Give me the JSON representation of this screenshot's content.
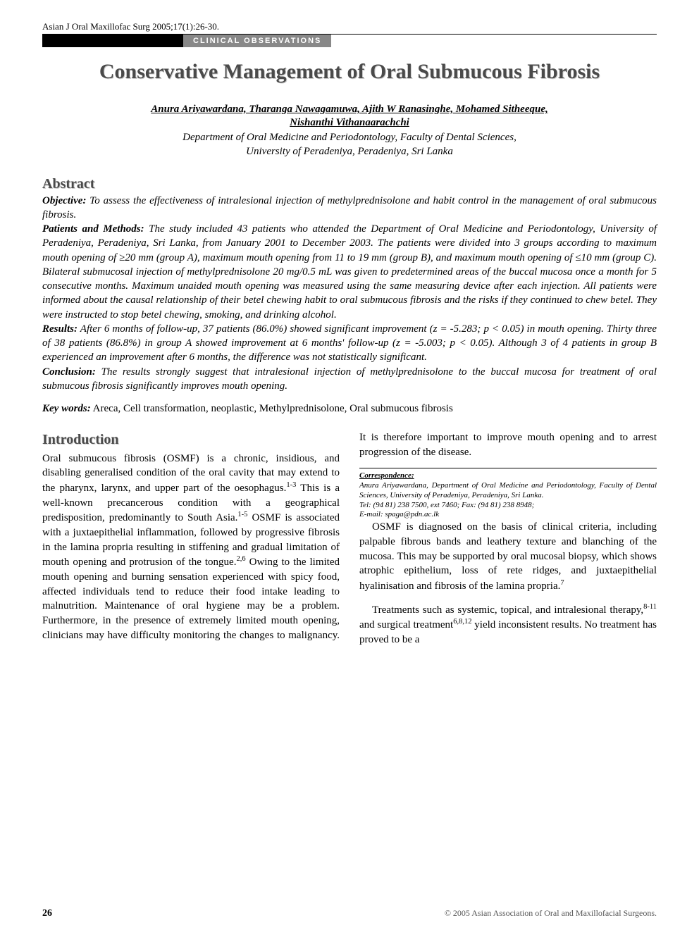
{
  "header": {
    "citation": "Asian J Oral Maxillofac Surg 2005;17(1):26-30.",
    "banner": "CLINICAL OBSERVATIONS"
  },
  "title": "Conservative Management of Oral Submucous Fibrosis",
  "authors_line1": "Anura Ariyawardana, Tharanga Nawagamuwa, Ajith W Ranasinghe, Mohamed Sitheeque,",
  "authors_line2": "Nishanthi Vithanaarachchi",
  "affiliation_line1": "Department of Oral Medicine and Periodontology, Faculty of Dental Sciences,",
  "affiliation_line2": "University of Peradeniya, Peradeniya, Sri Lanka",
  "abstract": {
    "heading": "Abstract",
    "objective_label": "Objective:",
    "objective_text": " To assess the effectiveness of intralesional injection of methylprednisolone and habit control in the management of oral submucous fibrosis.",
    "methods_label": "Patients and Methods:",
    "methods_text": " The study included 43 patients who attended the Department of Oral Medicine and Periodontology, University of Peradeniya, Peradeniya, Sri Lanka, from January 2001 to December 2003. The patients were divided into 3 groups according to maximum mouth opening of ≥20 mm (group A), maximum mouth opening from 11 to 19 mm (group B), and maximum mouth opening of ≤10 mm (group C). Bilateral submucosal injection of methylprednisolone 20 mg/0.5 mL was given to predetermined areas of the buccal mucosa once a month for 5 consecutive months. Maximum unaided mouth opening was measured using the same measuring device after each injection. All patients were informed about the causal relationship of their betel chewing habit to oral submucous fibrosis and the risks if they continued to chew betel. They were instructed to stop betel chewing, smoking, and drinking alcohol.",
    "results_label": "Results:",
    "results_text": " After 6 months of follow-up, 37 patients (86.0%) showed significant improvement (z = -5.283; p < 0.05) in mouth opening. Thirty three of 38 patients (86.8%) in group A showed improvement at 6 months' follow-up (z = -5.003; p < 0.05). Although 3 of 4 patients in group B experienced an improvement after 6 months, the difference was not statistically significant.",
    "conclusion_label": "Conclusion:",
    "conclusion_text": " The results strongly suggest that intralesional injection of methylprednisolone to the buccal mucosa for treatment of oral submucous fibrosis significantly improves mouth opening."
  },
  "keywords": {
    "label": "Key words:",
    "text": " Areca, Cell transformation, neoplastic, Methylprednisolone, Oral submucous fibrosis"
  },
  "intro": {
    "heading": "Introduction",
    "p1_a": "Oral submucous fibrosis (OSMF) is a chronic, insidious, and disabling generalised condition of the oral cavity that may extend to the pharynx, larynx, and upper part of the oesophagus.",
    "p1_b": " This is a well-known precancerous condition with a geographical predisposition, predominantly to South Asia.",
    "p1_c": " OSMF is associated with a juxtaepithelial inflammation, followed by progressive fibrosis in the lamina propria resulting in stiffening and gradual limitation of mouth opening and protrusion of the tongue.",
    "p1_d": " Owing to the limited mouth opening and burning sensation experienced with spicy food, affected individuals tend to reduce their food intake leading to malnutrition. Maintenance of oral hygiene may be a problem. Furthermore, in the presence of extremely limited mouth opening, clinicians may have difficulty monitoring the changes to malignancy. It is therefore important to improve mouth opening and to arrest progression of the disease.",
    "p2": "OSMF is diagnosed on the basis of clinical criteria, including palpable fibrous bands and leathery texture and blanching of the mucosa. This may be supported by oral mucosal biopsy, which shows atrophic epithelium, loss of rete ridges, and juxtaepithelial hyalinisation and fibrosis of the lamina propria.",
    "p3_a": "Treatments such as systemic, topical, and intralesional therapy,",
    "p3_b": " and surgical treatment",
    "p3_c": " yield inconsistent results. No treatment has proved to be a"
  },
  "correspondence": {
    "label": "Correspondence:",
    "line1": "Anura Ariyawardana, Department of Oral Medicine and Periodontology, Faculty of Dental Sciences, University of Peradeniya, Peradeniya, Sri Lanka.",
    "line2": "Tel: (94 81) 238 7500, ext 7460; Fax: (94 81) 238 8948;",
    "line3": "E-mail: spaga@pdn.ac.lk"
  },
  "footer": {
    "page": "26",
    "copyright": "© 2005 Asian Association of Oral and Maxillofacial Surgeons."
  },
  "refs": {
    "r13": "1-3",
    "r15": "1-5",
    "r26": "2,6",
    "r7": "7",
    "r811": "8-11",
    "r6812": "6,8,12"
  }
}
